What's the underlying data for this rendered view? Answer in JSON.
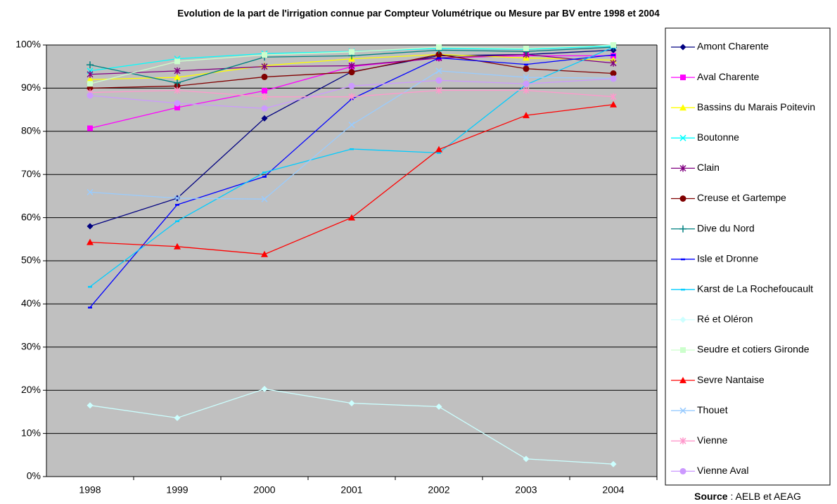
{
  "chart_data": {
    "type": "line",
    "title": "Evolution de la part de l'irrigation connue par Compteur Volumétrique ou Mesure par BV entre 1998 et 2004",
    "categories": [
      "1998",
      "1999",
      "2000",
      "2001",
      "2002",
      "2003",
      "2004"
    ],
    "ylim": [
      0,
      100
    ],
    "yticks": [
      {
        "value": 0,
        "label": "0%"
      },
      {
        "value": 10,
        "label": "10%"
      },
      {
        "value": 20,
        "label": "20%"
      },
      {
        "value": 30,
        "label": "30%"
      },
      {
        "value": 40,
        "label": "40%"
      },
      {
        "value": 50,
        "label": "50%"
      },
      {
        "value": 60,
        "label": "60%"
      },
      {
        "value": 70,
        "label": "70%"
      },
      {
        "value": 80,
        "label": "80%"
      },
      {
        "value": 90,
        "label": "90%"
      },
      {
        "value": 100,
        "label": "100%"
      }
    ],
    "grid": true,
    "legend": "right",
    "series": [
      {
        "name": "Amont Charente",
        "color": "#000080",
        "marker": "diamond",
        "values": [
          58,
          64.5,
          83,
          93.8,
          97.5,
          97.8,
          98.8
        ]
      },
      {
        "name": "Aval Charente",
        "color": "#ff00ff",
        "marker": "square",
        "values": [
          80.7,
          85.5,
          89.4,
          95,
          97,
          97.5,
          97.5
        ]
      },
      {
        "name": "Bassins du Marais Poitevin",
        "color": "#ffff00",
        "marker": "triangle",
        "values": [
          92,
          92.5,
          95.2,
          96.8,
          97.8,
          97,
          96.5
        ]
      },
      {
        "name": "Boutonne",
        "color": "#00ffff",
        "marker": "x",
        "values": [
          94,
          96.8,
          98,
          98.5,
          99.2,
          99,
          99.8
        ]
      },
      {
        "name": "Clain",
        "color": "#800080",
        "marker": "star",
        "values": [
          93.2,
          94,
          95,
          95.2,
          97,
          97.8,
          95.8
        ]
      },
      {
        "name": "Creuse et Gartempe",
        "color": "#800000",
        "marker": "circle",
        "values": [
          90,
          90.5,
          92.6,
          93.7,
          97.8,
          94.5,
          93.4
        ]
      },
      {
        "name": "Dive du Nord",
        "color": "#008080",
        "marker": "plus",
        "values": [
          95.4,
          91.2,
          97.2,
          97.5,
          98.8,
          98.5,
          99.5
        ]
      },
      {
        "name": "Isle et Dronne",
        "color": "#0000ff",
        "marker": "dash",
        "values": [
          39.2,
          63,
          69.5,
          87.5,
          97,
          95.5,
          97.7
        ]
      },
      {
        "name": "Karst de La Rochefoucault",
        "color": "#00ccff",
        "marker": "dash",
        "values": [
          44,
          59.2,
          70.5,
          75.9,
          75,
          90.8,
          99.5
        ]
      },
      {
        "name": "Ré et Oléron",
        "color": "#ccffff",
        "marker": "diamond",
        "values": [
          16.5,
          13.6,
          20.3,
          17,
          16.2,
          4.1,
          2.9
        ]
      },
      {
        "name": "Seudre et cotiers Gironde",
        "color": "#ccffcc",
        "marker": "square",
        "values": [
          91,
          96.2,
          97.7,
          98.4,
          99.5,
          99.2,
          100
        ]
      },
      {
        "name": "Sevre Nantaise",
        "color": "#ff0000",
        "marker": "triangle",
        "values": [
          54.3,
          53.3,
          51.5,
          60,
          75.8,
          83.7,
          86.2
        ]
      },
      {
        "name": "Thouet",
        "color": "#99ccff",
        "marker": "x",
        "values": [
          65.9,
          64.5,
          64.3,
          81.5,
          94,
          92.5,
          92.3
        ]
      },
      {
        "name": "Vienne",
        "color": "#ff99cc",
        "marker": "star",
        "values": [
          89,
          89.5,
          88,
          88,
          89.5,
          89.5,
          88
        ]
      },
      {
        "name": "Vienne Aval",
        "color": "#cc99ff",
        "marker": "circle",
        "values": [
          88.3,
          86.5,
          85.3,
          90.5,
          91.8,
          91,
          92.2
        ]
      }
    ],
    "source_label": "Source",
    "source_text": " : AELB et AEAG"
  }
}
